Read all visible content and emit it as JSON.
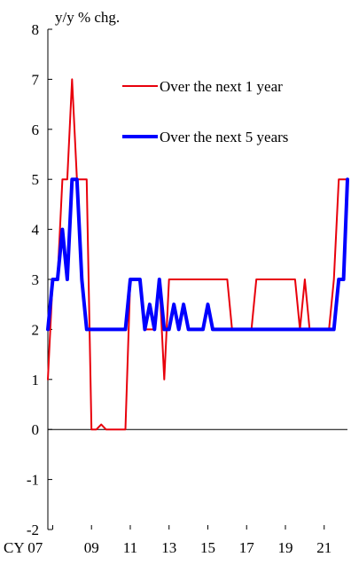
{
  "chart_data": {
    "type": "line",
    "ylabel": "y/y % chg.",
    "ylim": [
      -2,
      8
    ],
    "yticks": [
      -2,
      -1,
      0,
      1,
      2,
      3,
      4,
      5,
      6,
      7,
      8
    ],
    "xlim": [
      2006.75,
      2022.2
    ],
    "xticks": [
      {
        "pos": 2007,
        "label": "CY 07"
      },
      {
        "pos": 2009,
        "label": "09"
      },
      {
        "pos": 2011,
        "label": "11"
      },
      {
        "pos": 2013,
        "label": "13"
      },
      {
        "pos": 2015,
        "label": "15"
      },
      {
        "pos": 2017,
        "label": "17"
      },
      {
        "pos": 2019,
        "label": "19"
      },
      {
        "pos": 2021,
        "label": "21"
      }
    ],
    "legend_position": "top-right",
    "series": [
      {
        "name": "Over the next 1 year",
        "color": "#e8000b",
        "points": [
          [
            2006.75,
            1
          ],
          [
            2007.0,
            3
          ],
          [
            2007.25,
            3
          ],
          [
            2007.5,
            5
          ],
          [
            2007.75,
            5
          ],
          [
            2008.0,
            7
          ],
          [
            2008.25,
            5
          ],
          [
            2008.5,
            5
          ],
          [
            2008.75,
            5
          ],
          [
            2009.0,
            0
          ],
          [
            2009.25,
            0
          ],
          [
            2009.5,
            0.1
          ],
          [
            2009.75,
            0
          ],
          [
            2010.0,
            0
          ],
          [
            2010.25,
            0
          ],
          [
            2010.5,
            0
          ],
          [
            2010.75,
            0
          ],
          [
            2011.0,
            3
          ],
          [
            2011.25,
            3
          ],
          [
            2011.5,
            3
          ],
          [
            2011.75,
            2
          ],
          [
            2012.0,
            2
          ],
          [
            2012.25,
            2
          ],
          [
            2012.5,
            3
          ],
          [
            2012.75,
            1
          ],
          [
            2013.0,
            3
          ],
          [
            2013.25,
            3
          ],
          [
            2013.5,
            3
          ],
          [
            2013.75,
            3
          ],
          [
            2014.0,
            3
          ],
          [
            2014.25,
            3
          ],
          [
            2014.5,
            3
          ],
          [
            2014.75,
            3
          ],
          [
            2015.0,
            3
          ],
          [
            2015.25,
            3
          ],
          [
            2015.5,
            3
          ],
          [
            2015.75,
            3
          ],
          [
            2016.0,
            3
          ],
          [
            2016.25,
            2
          ],
          [
            2016.5,
            2
          ],
          [
            2016.75,
            2
          ],
          [
            2017.0,
            2
          ],
          [
            2017.25,
            2
          ],
          [
            2017.5,
            3
          ],
          [
            2017.75,
            3
          ],
          [
            2018.0,
            3
          ],
          [
            2018.25,
            3
          ],
          [
            2018.5,
            3
          ],
          [
            2018.75,
            3
          ],
          [
            2019.0,
            3
          ],
          [
            2019.25,
            3
          ],
          [
            2019.5,
            3
          ],
          [
            2019.75,
            2
          ],
          [
            2020.0,
            3
          ],
          [
            2020.25,
            2
          ],
          [
            2020.5,
            2
          ],
          [
            2020.75,
            2
          ],
          [
            2021.0,
            2
          ],
          [
            2021.25,
            2
          ],
          [
            2021.5,
            3
          ],
          [
            2021.75,
            5
          ],
          [
            2022.0,
            5
          ],
          [
            2022.2,
            5
          ]
        ]
      },
      {
        "name": "Over the next 5 years",
        "color": "#0000ff",
        "points": [
          [
            2006.75,
            2
          ],
          [
            2007.0,
            3
          ],
          [
            2007.25,
            3
          ],
          [
            2007.5,
            4
          ],
          [
            2007.75,
            3
          ],
          [
            2008.0,
            5
          ],
          [
            2008.25,
            5
          ],
          [
            2008.5,
            3
          ],
          [
            2008.75,
            2
          ],
          [
            2009.0,
            2
          ],
          [
            2009.25,
            2
          ],
          [
            2009.5,
            2
          ],
          [
            2009.75,
            2
          ],
          [
            2010.0,
            2
          ],
          [
            2010.25,
            2
          ],
          [
            2010.5,
            2
          ],
          [
            2010.75,
            2
          ],
          [
            2011.0,
            3
          ],
          [
            2011.25,
            3
          ],
          [
            2011.5,
            3
          ],
          [
            2011.75,
            2
          ],
          [
            2012.0,
            2.5
          ],
          [
            2012.25,
            2
          ],
          [
            2012.5,
            3
          ],
          [
            2012.75,
            2
          ],
          [
            2013.0,
            2
          ],
          [
            2013.25,
            2.5
          ],
          [
            2013.5,
            2
          ],
          [
            2013.75,
            2.5
          ],
          [
            2014.0,
            2
          ],
          [
            2014.25,
            2
          ],
          [
            2014.5,
            2
          ],
          [
            2014.75,
            2
          ],
          [
            2015.0,
            2.5
          ],
          [
            2015.25,
            2
          ],
          [
            2015.5,
            2
          ],
          [
            2015.75,
            2
          ],
          [
            2016.0,
            2
          ],
          [
            2016.5,
            2
          ],
          [
            2017.0,
            2
          ],
          [
            2017.5,
            2
          ],
          [
            2018.0,
            2
          ],
          [
            2018.5,
            2
          ],
          [
            2019.0,
            2
          ],
          [
            2019.5,
            2
          ],
          [
            2020.0,
            2
          ],
          [
            2020.5,
            2
          ],
          [
            2021.0,
            2
          ],
          [
            2021.5,
            2
          ],
          [
            2021.75,
            3
          ],
          [
            2022.0,
            3
          ],
          [
            2022.2,
            5
          ]
        ]
      }
    ]
  }
}
